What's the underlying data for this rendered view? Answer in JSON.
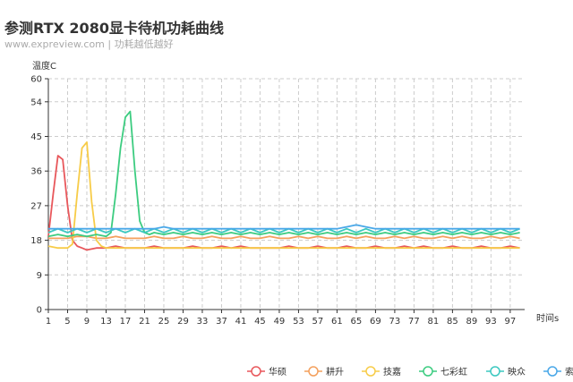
{
  "header": {
    "title": "参测RTX 2080显卡待机功耗曲线",
    "subtitle": "www.expreview.com | 功耗越低越好"
  },
  "chart_data": {
    "type": "line",
    "title": "参测RTX 2080显卡待机功耗曲线",
    "subtitle": "www.expreview.com | 功耗越低越好",
    "ylabel": "温度C",
    "xlabel": "时间s",
    "ylim": [
      0,
      60
    ],
    "yticks": [
      0,
      9,
      18,
      27,
      36,
      45,
      54,
      60
    ],
    "xlim": [
      1,
      100
    ],
    "xticks": [
      1,
      5,
      9,
      13,
      17,
      21,
      25,
      29,
      33,
      37,
      41,
      45,
      49,
      53,
      57,
      61,
      65,
      69,
      73,
      77,
      81,
      85,
      89,
      93,
      97
    ],
    "grid": true,
    "legend_position": "bottom-right",
    "series": [
      {
        "name": "华硕",
        "color": "#e8575b",
        "points": [
          [
            1,
            19
          ],
          [
            2,
            30
          ],
          [
            3,
            40
          ],
          [
            4,
            39
          ],
          [
            5,
            27
          ],
          [
            6,
            18
          ],
          [
            7,
            16.5
          ],
          [
            8,
            16
          ],
          [
            9,
            15.5
          ],
          [
            11,
            16
          ],
          [
            13,
            16
          ],
          [
            15,
            16.5
          ],
          [
            17,
            16
          ],
          [
            19,
            16
          ],
          [
            21,
            16
          ],
          [
            23,
            16.5
          ],
          [
            25,
            16
          ],
          [
            27,
            16
          ],
          [
            29,
            16
          ],
          [
            31,
            16.5
          ],
          [
            33,
            16
          ],
          [
            35,
            16
          ],
          [
            37,
            16.5
          ],
          [
            39,
            16
          ],
          [
            41,
            16.5
          ],
          [
            43,
            16
          ],
          [
            45,
            16
          ],
          [
            47,
            16
          ],
          [
            49,
            16
          ],
          [
            51,
            16.5
          ],
          [
            53,
            16
          ],
          [
            55,
            16
          ],
          [
            57,
            16.5
          ],
          [
            59,
            16
          ],
          [
            61,
            16
          ],
          [
            63,
            16.5
          ],
          [
            65,
            16
          ],
          [
            67,
            16
          ],
          [
            69,
            16.5
          ],
          [
            71,
            16
          ],
          [
            73,
            16
          ],
          [
            75,
            16.5
          ],
          [
            77,
            16
          ],
          [
            79,
            16.5
          ],
          [
            81,
            16
          ],
          [
            83,
            16
          ],
          [
            85,
            16.5
          ],
          [
            87,
            16
          ],
          [
            89,
            16
          ],
          [
            91,
            16.5
          ],
          [
            93,
            16
          ],
          [
            95,
            16
          ],
          [
            97,
            16.5
          ],
          [
            99,
            16
          ]
        ]
      },
      {
        "name": "耕升",
        "color": "#f4a05d",
        "points": [
          [
            1,
            18.5
          ],
          [
            3,
            18.5
          ],
          [
            5,
            18.5
          ],
          [
            7,
            19
          ],
          [
            9,
            19
          ],
          [
            11,
            18.5
          ],
          [
            13,
            18.5
          ],
          [
            15,
            19
          ],
          [
            17,
            18.5
          ],
          [
            19,
            18.5
          ],
          [
            21,
            18.5
          ],
          [
            23,
            19
          ],
          [
            25,
            18.5
          ],
          [
            27,
            18.5
          ],
          [
            29,
            19
          ],
          [
            31,
            18.5
          ],
          [
            33,
            18.5
          ],
          [
            35,
            19
          ],
          [
            37,
            18.5
          ],
          [
            39,
            18.5
          ],
          [
            41,
            19
          ],
          [
            43,
            18.5
          ],
          [
            45,
            18.5
          ],
          [
            47,
            19
          ],
          [
            49,
            18.5
          ],
          [
            51,
            18.5
          ],
          [
            53,
            19
          ],
          [
            55,
            18.5
          ],
          [
            57,
            19
          ],
          [
            59,
            18.5
          ],
          [
            61,
            18.5
          ],
          [
            63,
            19
          ],
          [
            65,
            18.5
          ],
          [
            67,
            19
          ],
          [
            69,
            18.5
          ],
          [
            71,
            18.5
          ],
          [
            73,
            19
          ],
          [
            75,
            18.5
          ],
          [
            77,
            19
          ],
          [
            79,
            18.5
          ],
          [
            81,
            18.5
          ],
          [
            83,
            19
          ],
          [
            85,
            18.5
          ],
          [
            87,
            19
          ],
          [
            89,
            18.5
          ],
          [
            91,
            18.5
          ],
          [
            93,
            19
          ],
          [
            95,
            18.5
          ],
          [
            97,
            19
          ],
          [
            99,
            18.5
          ]
        ]
      },
      {
        "name": "技嘉",
        "color": "#f7cc48",
        "points": [
          [
            1,
            16.5
          ],
          [
            3,
            16
          ],
          [
            5,
            16
          ],
          [
            6,
            17
          ],
          [
            7,
            30
          ],
          [
            8,
            42
          ],
          [
            9,
            43.5
          ],
          [
            10,
            28
          ],
          [
            11,
            18
          ],
          [
            12,
            16.5
          ],
          [
            13,
            16
          ],
          [
            15,
            16
          ],
          [
            17,
            16
          ],
          [
            19,
            16
          ],
          [
            21,
            16
          ],
          [
            23,
            16
          ],
          [
            25,
            16
          ],
          [
            27,
            16
          ],
          [
            29,
            16
          ],
          [
            31,
            16
          ],
          [
            33,
            16
          ],
          [
            35,
            16
          ],
          [
            37,
            16
          ],
          [
            39,
            16
          ],
          [
            41,
            16
          ],
          [
            43,
            16
          ],
          [
            45,
            16
          ],
          [
            47,
            16
          ],
          [
            49,
            16
          ],
          [
            51,
            16
          ],
          [
            53,
            16
          ],
          [
            55,
            16
          ],
          [
            57,
            16
          ],
          [
            59,
            16
          ],
          [
            61,
            16
          ],
          [
            63,
            16
          ],
          [
            65,
            16
          ],
          [
            67,
            16
          ],
          [
            69,
            16
          ],
          [
            71,
            16
          ],
          [
            73,
            16
          ],
          [
            75,
            16
          ],
          [
            77,
            16
          ],
          [
            79,
            16
          ],
          [
            81,
            16
          ],
          [
            83,
            16
          ],
          [
            85,
            16
          ],
          [
            87,
            16
          ],
          [
            89,
            16
          ],
          [
            91,
            16
          ],
          [
            93,
            16
          ],
          [
            95,
            16
          ],
          [
            97,
            16
          ],
          [
            99,
            16
          ]
        ]
      },
      {
        "name": "七彩虹",
        "color": "#3ccc80",
        "points": [
          [
            1,
            19
          ],
          [
            3,
            19.5
          ],
          [
            5,
            19
          ],
          [
            7,
            19.5
          ],
          [
            9,
            19
          ],
          [
            11,
            19.5
          ],
          [
            13,
            19
          ],
          [
            14,
            20
          ],
          [
            15,
            30
          ],
          [
            16,
            42
          ],
          [
            17,
            50
          ],
          [
            18,
            51.5
          ],
          [
            19,
            36
          ],
          [
            20,
            23
          ],
          [
            21,
            20
          ],
          [
            22,
            19.5
          ],
          [
            23,
            20
          ],
          [
            25,
            19.5
          ],
          [
            27,
            20
          ],
          [
            29,
            19.5
          ],
          [
            31,
            20
          ],
          [
            33,
            19.5
          ],
          [
            35,
            20
          ],
          [
            37,
            19.5
          ],
          [
            39,
            20
          ],
          [
            41,
            19.5
          ],
          [
            43,
            20
          ],
          [
            45,
            19.5
          ],
          [
            47,
            20
          ],
          [
            49,
            19.5
          ],
          [
            51,
            20
          ],
          [
            53,
            19.5
          ],
          [
            55,
            20
          ],
          [
            57,
            19.5
          ],
          [
            59,
            20
          ],
          [
            61,
            19.5
          ],
          [
            63,
            20
          ],
          [
            65,
            19.5
          ],
          [
            67,
            20
          ],
          [
            69,
            19.5
          ],
          [
            71,
            20
          ],
          [
            73,
            19.5
          ],
          [
            75,
            20
          ],
          [
            77,
            19.5
          ],
          [
            79,
            20
          ],
          [
            81,
            19.5
          ],
          [
            83,
            20
          ],
          [
            85,
            19.5
          ],
          [
            87,
            20
          ],
          [
            89,
            19.5
          ],
          [
            91,
            20
          ],
          [
            93,
            19.5
          ],
          [
            95,
            20
          ],
          [
            97,
            19.5
          ],
          [
            99,
            20
          ]
        ]
      },
      {
        "name": "映众",
        "color": "#3cc8c0",
        "points": [
          [
            1,
            20
          ],
          [
            3,
            21
          ],
          [
            5,
            20
          ],
          [
            7,
            21
          ],
          [
            9,
            20
          ],
          [
            11,
            21
          ],
          [
            13,
            20
          ],
          [
            15,
            21
          ],
          [
            17,
            20
          ],
          [
            19,
            21
          ],
          [
            21,
            20
          ],
          [
            23,
            21
          ],
          [
            25,
            20
          ],
          [
            27,
            21
          ],
          [
            29,
            20
          ],
          [
            31,
            21
          ],
          [
            33,
            20
          ],
          [
            35,
            21
          ],
          [
            37,
            20
          ],
          [
            39,
            21
          ],
          [
            41,
            20
          ],
          [
            43,
            21
          ],
          [
            45,
            20
          ],
          [
            47,
            21
          ],
          [
            49,
            20
          ],
          [
            51,
            21
          ],
          [
            53,
            20
          ],
          [
            55,
            21
          ],
          [
            57,
            20
          ],
          [
            59,
            21
          ],
          [
            61,
            20
          ],
          [
            63,
            21
          ],
          [
            65,
            20
          ],
          [
            67,
            21
          ],
          [
            69,
            20
          ],
          [
            71,
            21
          ],
          [
            73,
            20
          ],
          [
            75,
            21
          ],
          [
            77,
            20
          ],
          [
            79,
            21
          ],
          [
            81,
            20
          ],
          [
            83,
            21
          ],
          [
            85,
            20
          ],
          [
            87,
            21
          ],
          [
            89,
            20
          ],
          [
            91,
            21
          ],
          [
            93,
            20
          ],
          [
            95,
            21
          ],
          [
            97,
            20
          ],
          [
            99,
            21
          ]
        ]
      },
      {
        "name": "索泰",
        "color": "#4aa8e8",
        "points": [
          [
            1,
            21
          ],
          [
            3,
            21
          ],
          [
            5,
            21
          ],
          [
            7,
            21
          ],
          [
            9,
            21
          ],
          [
            11,
            21
          ],
          [
            13,
            21
          ],
          [
            15,
            21
          ],
          [
            17,
            21
          ],
          [
            19,
            21
          ],
          [
            21,
            21
          ],
          [
            23,
            21
          ],
          [
            25,
            21.5
          ],
          [
            27,
            21
          ],
          [
            29,
            21
          ],
          [
            31,
            21
          ],
          [
            33,
            21
          ],
          [
            35,
            21
          ],
          [
            37,
            21
          ],
          [
            39,
            21
          ],
          [
            41,
            21
          ],
          [
            43,
            21
          ],
          [
            45,
            21
          ],
          [
            47,
            21
          ],
          [
            49,
            21
          ],
          [
            51,
            21
          ],
          [
            53,
            21
          ],
          [
            55,
            21
          ],
          [
            57,
            21
          ],
          [
            59,
            21
          ],
          [
            61,
            21
          ],
          [
            63,
            21.5
          ],
          [
            65,
            22
          ],
          [
            67,
            21.5
          ],
          [
            69,
            21
          ],
          [
            71,
            21
          ],
          [
            73,
            21
          ],
          [
            75,
            21
          ],
          [
            77,
            21
          ],
          [
            79,
            21
          ],
          [
            81,
            21
          ],
          [
            83,
            21
          ],
          [
            85,
            21
          ],
          [
            87,
            21
          ],
          [
            89,
            21
          ],
          [
            91,
            21
          ],
          [
            93,
            21
          ],
          [
            95,
            21
          ],
          [
            97,
            21
          ],
          [
            99,
            21
          ]
        ]
      }
    ]
  }
}
